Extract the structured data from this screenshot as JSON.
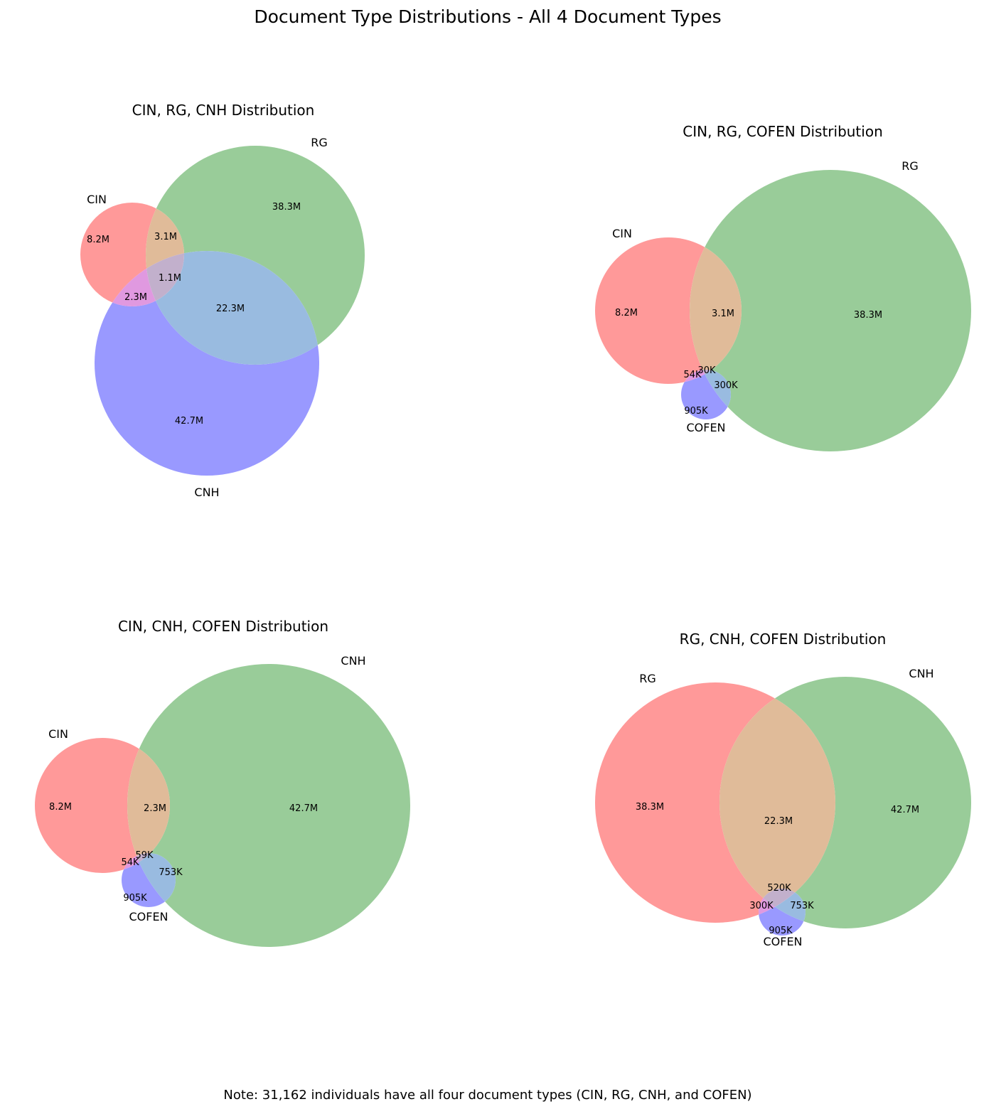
{
  "title": "Document Type Distributions - All 4 Document Types",
  "note": "Note: 31,162 individuals have all four document types (CIN, RG, CNH, and COFEN)",
  "colors": {
    "set_a": "#ff9999",
    "set_b": "#99cc99",
    "set_c": "#9999ff",
    "ab": "#e0bb99",
    "ac": "#e099e0",
    "bc": "#99bbe0",
    "abc": "#c2b0cc",
    "edge": "#ffffff"
  },
  "chart_data": [
    {
      "type": "venn3",
      "title": "CIN, RG, CNH Distribution",
      "sets": [
        "CIN",
        "RG",
        "CNH"
      ],
      "regions": {
        "A": "8.2M",
        "B": "38.3M",
        "C": "42.7M",
        "AB": "3.1M",
        "AC": "2.3M",
        "BC": "22.3M",
        "ABC": "1.1M"
      }
    },
    {
      "type": "venn3",
      "title": "CIN, RG, COFEN Distribution",
      "sets": [
        "CIN",
        "RG",
        "COFEN"
      ],
      "regions": {
        "A": "8.2M",
        "B": "38.3M",
        "C": "905K",
        "AB": "3.1M",
        "AC": "54K",
        "BC": "300K",
        "ABC": "30K"
      }
    },
    {
      "type": "venn3",
      "title": "CIN, CNH, COFEN Distribution",
      "sets": [
        "CIN",
        "CNH",
        "COFEN"
      ],
      "regions": {
        "A": "8.2M",
        "B": "42.7M",
        "C": "905K",
        "AB": "2.3M",
        "AC": "54K",
        "BC": "753K",
        "ABC": "59K"
      }
    },
    {
      "type": "venn3",
      "title": "RG, CNH, COFEN Distribution",
      "sets": [
        "RG",
        "CNH",
        "COFEN"
      ],
      "regions": {
        "A": "38.3M",
        "B": "42.7M",
        "C": "905K",
        "AB": "22.3M",
        "AC": "300K",
        "BC": "753K",
        "ABC": "520K"
      }
    }
  ]
}
